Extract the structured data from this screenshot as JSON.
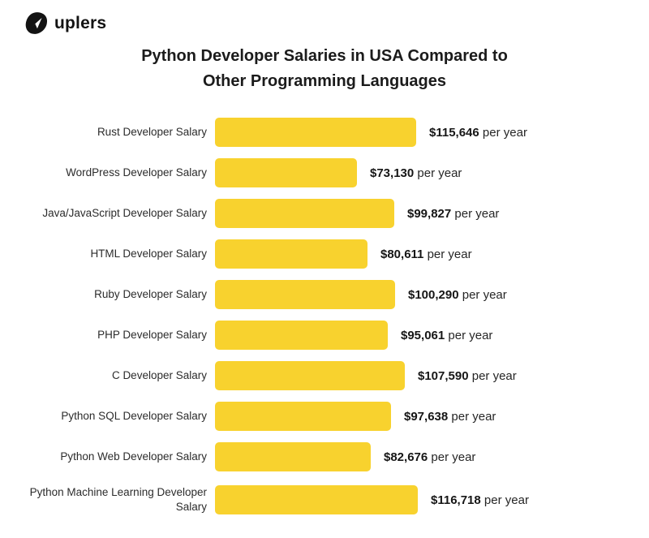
{
  "brand": {
    "logo_text": "uplers",
    "logo_icon": "paper-plane-icon",
    "logo_color": "#131313"
  },
  "title": {
    "line1": "Python Developer Salaries in USA Compared to",
    "line2": "Other Programming Languages"
  },
  "chart_data": {
    "type": "bar",
    "orientation": "horizontal",
    "title": "Python Developer Salaries in USA Compared to Other Programming Languages",
    "categories": [
      "Rust Developer Salary",
      "WordPress Developer Salary",
      "Java/JavaScript Developer Salary",
      "HTML Developer Salary",
      "Ruby Developer Salary",
      "PHP Developer Salary",
      "C Developer Salary",
      "Python SQL Developer Salary",
      "Python Web Developer Salary",
      "Python Machine Learning Developer Salary"
    ],
    "values": [
      115646,
      73130,
      99827,
      80611,
      100290,
      95061,
      107590,
      97638,
      82676,
      116718
    ],
    "value_labels": [
      "$115,646",
      "$73,130",
      "$99,827",
      "$80,611",
      "$100,290",
      "$95,061",
      "$107,590",
      "$97,638",
      "$82,676",
      "$116,718"
    ],
    "value_suffix": "per year",
    "bar_color": "#F8D22E",
    "xlim": [
      0,
      116718
    ],
    "grid": false,
    "legend": false
  },
  "colors": {
    "background": "#FFFFFF",
    "text": "#1E1E1E",
    "bar": "#F8D22E"
  }
}
